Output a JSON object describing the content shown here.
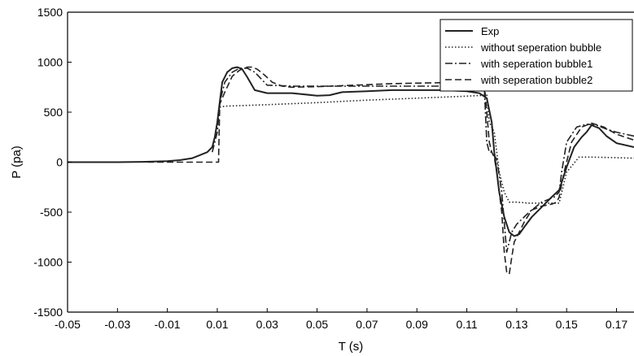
{
  "chart_data": {
    "type": "line",
    "title": "",
    "xlabel": "T (s)",
    "ylabel": "P (pa)",
    "xlim": [
      -0.05,
      0.177
    ],
    "ylim": [
      -1500,
      1500
    ],
    "xticks": [
      -0.05,
      -0.03,
      -0.01,
      0.01,
      0.03,
      0.05,
      0.07,
      0.09,
      0.11,
      0.13,
      0.15,
      0.17
    ],
    "xtick_labels": [
      "-0.05",
      "-0.03",
      "-0.01",
      "0.01",
      "0.03",
      "0.05",
      "0.07",
      "0.09",
      "0.11",
      "0.13",
      "0.15",
      "0.17"
    ],
    "yticks": [
      -1500,
      -1000,
      -500,
      0,
      500,
      1000,
      1500
    ],
    "ytick_labels": [
      "-1500",
      "-1000",
      "-500",
      "0",
      "500",
      "1000",
      "1500"
    ],
    "grid": false,
    "legend_position": "top-right",
    "series": [
      {
        "name": "Exp",
        "style": "solid",
        "x": [
          -0.05,
          -0.04,
          -0.03,
          -0.02,
          -0.01,
          -0.005,
          0.0,
          0.003,
          0.006,
          0.008,
          0.009,
          0.01,
          0.011,
          0.012,
          0.014,
          0.016,
          0.018,
          0.02,
          0.022,
          0.025,
          0.03,
          0.04,
          0.05,
          0.055,
          0.06,
          0.07,
          0.08,
          0.09,
          0.1,
          0.11,
          0.115,
          0.118,
          0.12,
          0.121,
          0.122,
          0.123,
          0.125,
          0.127,
          0.129,
          0.131,
          0.133,
          0.136,
          0.14,
          0.144,
          0.147,
          0.15,
          0.153,
          0.156,
          0.158,
          0.16,
          0.163,
          0.166,
          0.17,
          0.177
        ],
        "y": [
          0,
          0,
          0,
          3,
          10,
          20,
          40,
          70,
          100,
          150,
          250,
          400,
          600,
          800,
          900,
          940,
          950,
          930,
          850,
          720,
          690,
          690,
          665,
          670,
          700,
          710,
          720,
          720,
          720,
          710,
          690,
          640,
          400,
          100,
          -100,
          -300,
          -550,
          -700,
          -740,
          -720,
          -650,
          -550,
          -450,
          -350,
          -280,
          -50,
          150,
          250,
          300,
          370,
          340,
          260,
          190,
          150
        ]
      },
      {
        "name": "without seperation bubble",
        "style": "dotted",
        "x": [
          0.011,
          0.013,
          0.03,
          0.05,
          0.07,
          0.09,
          0.11,
          0.118,
          0.119,
          0.121,
          0.123,
          0.125,
          0.127,
          0.13,
          0.135,
          0.14,
          0.145,
          0.147,
          0.15,
          0.155,
          0.16,
          0.17,
          0.177
        ],
        "y": [
          550,
          560,
          575,
          595,
          620,
          640,
          660,
          670,
          400,
          300,
          -100,
          -300,
          -400,
          -400,
          -410,
          -410,
          -410,
          -410,
          -100,
          50,
          50,
          45,
          40
        ]
      },
      {
        "name": "with seperation bubble1",
        "style": "dashdot",
        "x": [
          0.008,
          0.01,
          0.011,
          0.013,
          0.016,
          0.019,
          0.022,
          0.025,
          0.03,
          0.04,
          0.05,
          0.06,
          0.07,
          0.08,
          0.09,
          0.1,
          0.11,
          0.117,
          0.118,
          0.119,
          0.12,
          0.122,
          0.124,
          0.125,
          0.126,
          0.128,
          0.13,
          0.135,
          0.14,
          0.145,
          0.147,
          0.148,
          0.15,
          0.154,
          0.158,
          0.162,
          0.166,
          0.17,
          0.177
        ],
        "y": [
          100,
          300,
          600,
          800,
          900,
          940,
          940,
          900,
          770,
          760,
          760,
          760,
          760,
          760,
          760,
          760,
          760,
          760,
          200,
          100,
          100,
          30,
          -300,
          -600,
          -900,
          -700,
          -620,
          -500,
          -400,
          -350,
          -300,
          -100,
          200,
          350,
          380,
          370,
          330,
          300,
          260
        ]
      },
      {
        "name": "with seperation bubble2",
        "style": "dashed",
        "x": [
          -0.018,
          -0.012,
          -0.006,
          0.0,
          0.006,
          0.0105,
          0.011,
          0.013,
          0.016,
          0.019,
          0.022,
          0.024,
          0.026,
          0.029,
          0.032,
          0.036,
          0.04,
          0.05,
          0.06,
          0.07,
          0.08,
          0.09,
          0.1,
          0.11,
          0.117,
          0.118,
          0.119,
          0.12,
          0.121,
          0.122,
          0.124,
          0.125,
          0.126,
          0.127,
          0.128,
          0.129,
          0.131,
          0.133,
          0.136,
          0.14,
          0.144,
          0.146,
          0.147,
          0.149,
          0.152,
          0.156,
          0.16,
          0.165,
          0.17,
          0.177
        ],
        "y": [
          0,
          0,
          0,
          0,
          0,
          0,
          580,
          700,
          860,
          920,
          950,
          950,
          930,
          870,
          800,
          760,
          750,
          755,
          765,
          775,
          785,
          790,
          795,
          800,
          790,
          500,
          200,
          100,
          50,
          -100,
          -500,
          -900,
          -1100,
          -1120,
          -950,
          -800,
          -700,
          -600,
          -480,
          -440,
          -420,
          -400,
          -350,
          -100,
          200,
          350,
          390,
          350,
          280,
          220
        ]
      }
    ]
  }
}
